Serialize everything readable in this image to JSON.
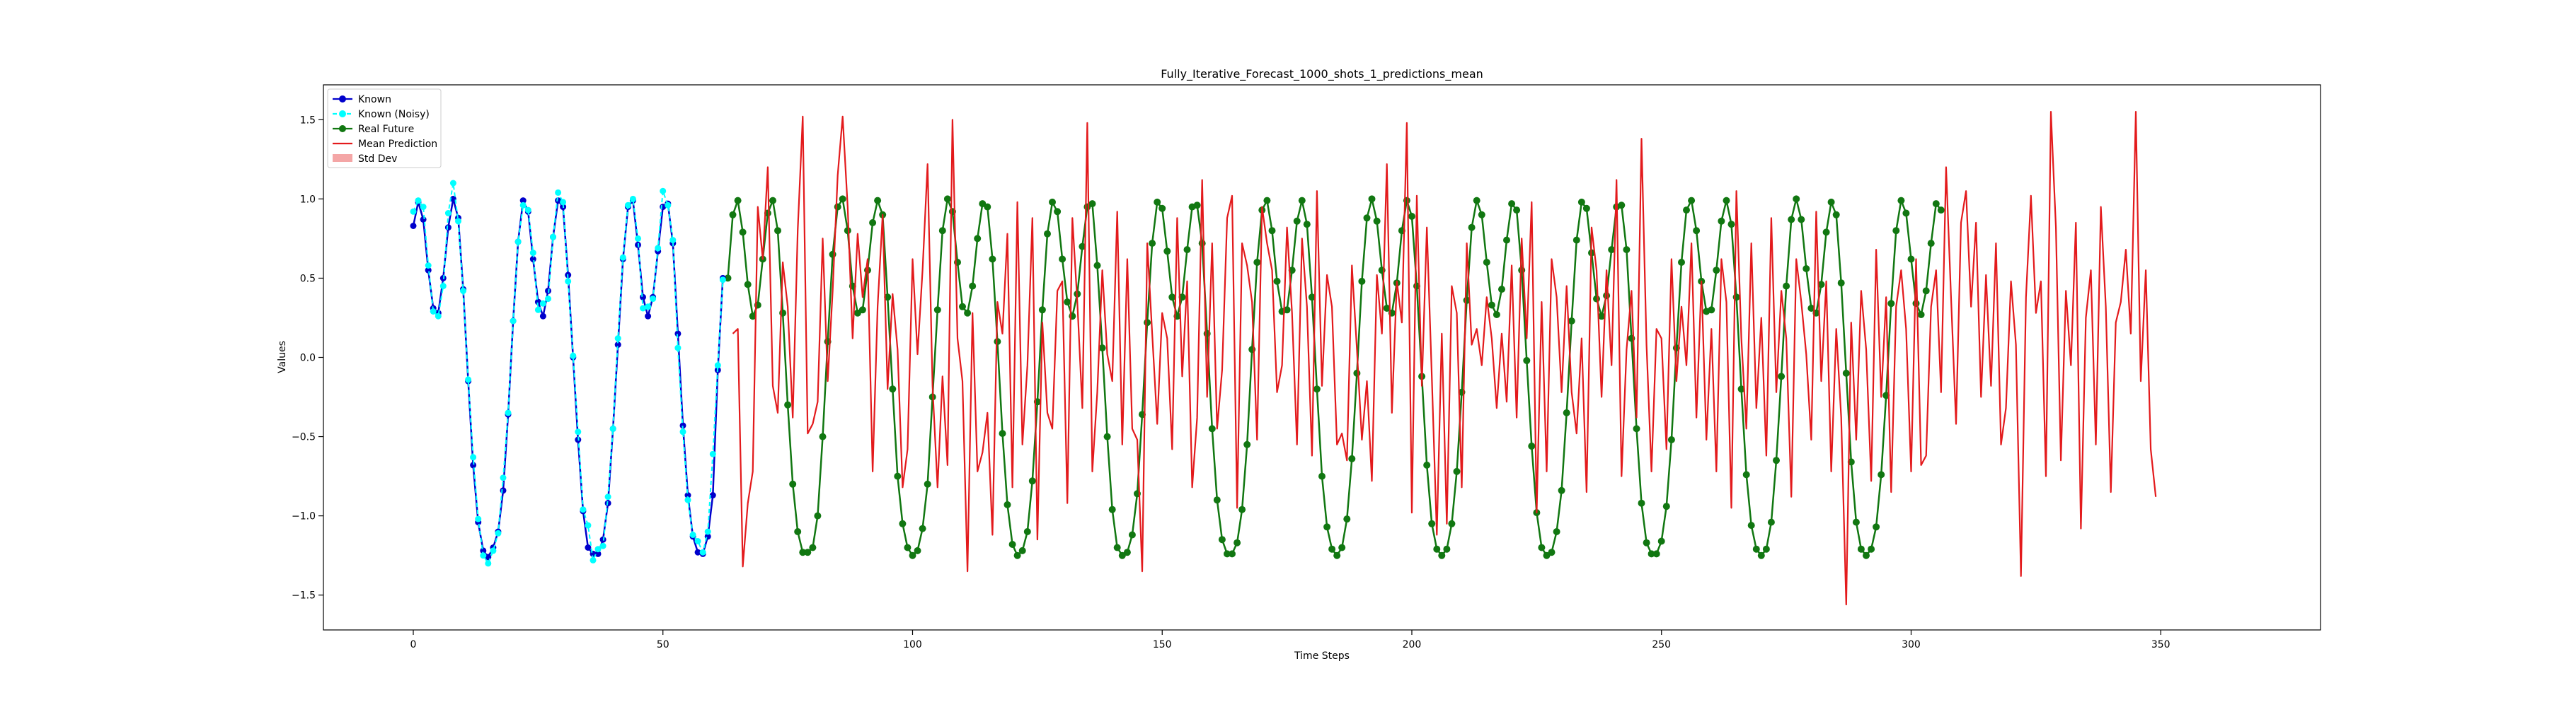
{
  "chart_data": {
    "type": "line",
    "title": "Fully_Iterative_Forecast_1000_shots_1_predictions_mean",
    "xlabel": "Time Steps",
    "ylabel": "Values",
    "xlim": [
      -18,
      382
    ],
    "ylim": [
      -1.72,
      1.72
    ],
    "xticks": [
      0,
      50,
      100,
      150,
      200,
      250,
      300,
      350
    ],
    "xtick_labels": [
      "0",
      "50",
      "100",
      "150",
      "200",
      "250",
      "300",
      "350"
    ],
    "yticks": [
      -1.5,
      -1.0,
      -0.5,
      0.0,
      0.5,
      1.0,
      1.5
    ],
    "ytick_labels": [
      "−1.5",
      "−1.0",
      "−0.5",
      "0.0",
      "0.5",
      "1.0",
      "1.5"
    ],
    "grid": false,
    "legend_position": "top-left",
    "series": [
      {
        "name": "Known",
        "color": "#0000cc",
        "marker": "circle",
        "x_start": 0,
        "values": [
          0.83,
          0.98,
          0.87,
          0.55,
          0.31,
          0.28,
          0.5,
          0.82,
          1.0,
          0.88,
          0.43,
          -0.15,
          -0.68,
          -1.04,
          -1.22,
          -1.26,
          -1.2,
          -1.1,
          -0.84,
          -0.36,
          0.23,
          0.73,
          0.99,
          0.92,
          0.62,
          0.35,
          0.26,
          0.42,
          0.76,
          0.99,
          0.95,
          0.52,
          0.0,
          -0.52,
          -0.97,
          -1.2,
          -1.24,
          -1.24,
          -1.15,
          -0.92,
          -0.45,
          0.08,
          0.62,
          0.95,
          0.99,
          0.71,
          0.38,
          0.26,
          0.38,
          0.67,
          0.95,
          0.97,
          0.72,
          0.15,
          -0.43,
          -0.87,
          -1.13,
          -1.23,
          -1.24,
          -1.13,
          -0.87,
          -0.08,
          0.5
        ]
      },
      {
        "name": "Known (Noisy)",
        "color": "#00ffff",
        "marker": "circle",
        "x_start": 0,
        "values": [
          0.92,
          0.99,
          0.95,
          0.58,
          0.29,
          0.26,
          0.45,
          0.91,
          1.1,
          0.86,
          0.42,
          -0.14,
          -0.63,
          -1.02,
          -1.25,
          -1.3,
          -1.22,
          -1.11,
          -0.76,
          -0.35,
          0.23,
          0.73,
          0.96,
          0.93,
          0.66,
          0.3,
          0.34,
          0.37,
          0.76,
          1.04,
          0.98,
          0.48,
          0.01,
          -0.47,
          -0.96,
          -1.06,
          -1.28,
          -1.21,
          -1.19,
          -0.88,
          -0.45,
          0.12,
          0.63,
          0.96,
          1.0,
          0.75,
          0.31,
          0.32,
          0.37,
          0.69,
          1.05,
          0.96,
          0.74,
          0.06,
          -0.47,
          -0.9,
          -1.12,
          -1.16,
          -1.23,
          -1.1,
          -0.61,
          -0.05,
          0.49
        ]
      },
      {
        "name": "Real Future",
        "color": "#117711",
        "marker": "circle",
        "x_start": 63,
        "values": [
          0.5,
          0.9,
          0.99,
          0.79,
          0.46,
          0.26,
          0.33,
          0.62,
          0.91,
          0.99,
          0.8,
          0.28,
          -0.3,
          -0.8,
          -1.1,
          -1.23,
          -1.23,
          -1.2,
          -1.0,
          -0.5,
          0.1,
          0.65,
          0.95,
          1.0,
          0.8,
          0.45,
          0.28,
          0.3,
          0.55,
          0.85,
          0.99,
          0.9,
          0.38,
          -0.2,
          -0.75,
          -1.05,
          -1.2,
          -1.25,
          -1.22,
          -1.08,
          -0.8,
          -0.25,
          0.3,
          0.8,
          1.0,
          0.92,
          0.6,
          0.32,
          0.28,
          0.45,
          0.75,
          0.97,
          0.95,
          0.62,
          0.1,
          -0.48,
          -0.93,
          -1.18,
          -1.25,
          -1.22,
          -1.1,
          -0.78,
          -0.28,
          0.3,
          0.78,
          0.98,
          0.92,
          0.62,
          0.35,
          0.26,
          0.4,
          0.7,
          0.95,
          0.97,
          0.58,
          0.06,
          -0.5,
          -0.96,
          -1.2,
          -1.25,
          -1.23,
          -1.12,
          -0.86,
          -0.36,
          0.22,
          0.72,
          0.98,
          0.94,
          0.67,
          0.38,
          0.26,
          0.38,
          0.68,
          0.95,
          0.96,
          0.72,
          0.15,
          -0.45,
          -0.9,
          -1.15,
          -1.24,
          -1.24,
          -1.17,
          -0.96,
          -0.55,
          0.05,
          0.6,
          0.93,
          0.99,
          0.8,
          0.48,
          0.29,
          0.3,
          0.55,
          0.86,
          0.99,
          0.84,
          0.38,
          -0.2,
          -0.75,
          -1.07,
          -1.21,
          -1.25,
          -1.2,
          -1.02,
          -0.64,
          -0.1,
          0.48,
          0.88,
          1.0,
          0.86,
          0.55,
          0.31,
          0.28,
          0.47,
          0.8,
          0.99,
          0.89,
          0.45,
          -0.12,
          -0.68,
          -1.05,
          -1.21,
          -1.25,
          -1.21,
          -1.05,
          -0.72,
          -0.22,
          0.36,
          0.82,
          0.99,
          0.9,
          0.6,
          0.33,
          0.27,
          0.43,
          0.74,
          0.97,
          0.93,
          0.55,
          -0.02,
          -0.56,
          -0.98,
          -1.2,
          -1.25,
          -1.23,
          -1.1,
          -0.84,
          -0.35,
          0.23,
          0.74,
          0.98,
          0.94,
          0.66,
          0.37,
          0.26,
          0.39,
          0.68,
          0.95,
          0.96,
          0.68,
          0.12,
          -0.45,
          -0.92,
          -1.17,
          -1.24,
          -1.24,
          -1.16,
          -0.94,
          -0.52,
          0.06,
          0.6,
          0.93,
          0.99,
          0.8,
          0.48,
          0.29,
          0.3,
          0.55,
          0.86,
          0.99,
          0.84,
          0.38,
          -0.2,
          -0.74,
          -1.06,
          -1.21,
          -1.25,
          -1.21,
          -1.04,
          -0.65,
          -0.12,
          0.45,
          0.87,
          1.0,
          0.87,
          0.56,
          0.31,
          0.28,
          0.46,
          0.79,
          0.98,
          0.9,
          0.47,
          -0.1,
          -0.66,
          -1.04,
          -1.21,
          -1.25,
          -1.21,
          -1.07,
          -0.74,
          -0.24,
          0.34,
          0.8,
          0.99,
          0.91,
          0.62,
          0.34,
          0.27,
          0.42,
          0.72,
          0.97,
          0.93
        ]
      },
      {
        "name": "Mean Prediction",
        "color": "#e31a1c",
        "marker": "none",
        "x_start": 64,
        "values": [
          0.15,
          0.18,
          -1.32,
          -0.92,
          -0.72,
          0.95,
          0.62,
          1.2,
          -0.18,
          -0.35,
          0.6,
          0.32,
          -0.38,
          0.8,
          1.52,
          -0.48,
          -0.42,
          -0.28,
          0.75,
          -0.15,
          0.42,
          1.15,
          1.52,
          0.95,
          0.12,
          0.78,
          0.38,
          0.62,
          -0.72,
          0.32,
          0.9,
          -0.2,
          0.4,
          0.05,
          -0.82,
          -0.58,
          0.62,
          0.02,
          0.55,
          1.22,
          -0.18,
          -0.82,
          -0.12,
          -0.68,
          1.5,
          0.12,
          -0.15,
          -1.35,
          0.28,
          -0.72,
          -0.6,
          -0.35,
          -1.12,
          0.35,
          0.15,
          0.78,
          -0.82,
          0.98,
          -0.55,
          -0.05,
          0.88,
          -1.15,
          0.22,
          -0.35,
          -0.45,
          0.42,
          0.48,
          -0.92,
          0.88,
          0.35,
          -0.32,
          1.48,
          -0.72,
          -0.22,
          0.55,
          0.02,
          -0.15,
          0.92,
          -0.55,
          0.62,
          -0.45,
          -0.52,
          -1.35,
          0.72,
          0.15,
          -0.42,
          0.28,
          0.12,
          -0.58,
          0.88,
          -0.12,
          0.48,
          -0.82,
          -0.38,
          1.12,
          -0.25,
          0.72,
          -0.45,
          -0.08,
          0.88,
          1.02,
          -0.95,
          0.72,
          0.58,
          0.35,
          -0.52,
          0.95,
          0.72,
          0.55,
          -0.22,
          -0.05,
          0.82,
          0.28,
          -0.55,
          0.75,
          0.32,
          -0.62,
          1.05,
          -0.18,
          0.52,
          0.32,
          -0.55,
          -0.48,
          -0.65,
          0.58,
          0.05,
          -0.52,
          -0.15,
          -0.78,
          0.52,
          0.15,
          1.22,
          -0.35,
          0.48,
          0.22,
          1.48,
          -0.98,
          1.02,
          -0.18,
          0.82,
          -0.12,
          -1.12,
          0.15,
          -1.05,
          0.45,
          0.28,
          -0.82,
          0.72,
          0.08,
          0.18,
          -0.05,
          0.38,
          0.12,
          -0.32,
          0.15,
          -0.28,
          0.58,
          -0.38,
          0.75,
          0.12,
          0.98,
          -0.98,
          0.35,
          -0.72,
          0.62,
          0.38,
          -0.22,
          0.45,
          -0.22,
          -0.48,
          0.12,
          -0.85,
          0.82,
          0.55,
          -0.25,
          0.55,
          -0.05,
          1.12,
          -0.75,
          0.05,
          0.42,
          -0.38,
          1.38,
          0.08,
          -0.72,
          0.18,
          0.12,
          -0.58,
          0.62,
          -0.15,
          0.32,
          -0.05,
          0.72,
          -0.38,
          0.48,
          -0.52,
          0.18,
          -0.72,
          0.62,
          0.35,
          -0.95,
          1.05,
          0.12,
          -0.45,
          0.72,
          -0.32,
          0.25,
          -0.62,
          0.88,
          -0.22,
          0.42,
          0.12,
          -0.88,
          0.62,
          0.35,
          0.02,
          -0.52,
          0.92,
          -0.15,
          0.48,
          -0.72,
          0.18,
          -0.38,
          -1.56,
          0.22,
          -0.52,
          0.42,
          0.05,
          -0.78,
          0.68,
          -0.25,
          0.38,
          -0.85,
          0.32,
          0.55,
          0.18,
          -0.72,
          0.62,
          -0.68,
          -0.62,
          0.32,
          0.55,
          -0.22,
          1.2,
          0.38,
          -0.42,
          0.85,
          1.05,
          0.32,
          0.85,
          -0.25,
          0.52,
          -0.18,
          0.72,
          -0.55,
          -0.32,
          0.48,
          0.08,
          -1.38,
          0.38,
          1.02,
          0.28,
          0.48,
          -0.75,
          1.55,
          0.82,
          -0.65,
          0.42,
          -0.05,
          0.85,
          -1.08,
          0.25,
          0.55,
          -0.55,
          0.95,
          0.32,
          -0.85,
          0.22,
          0.35,
          0.68,
          0.15,
          1.55,
          -0.15,
          0.55,
          -0.58,
          -0.88
        ]
      }
    ],
    "legend": [
      {
        "label": "Known",
        "symbol": "line-marker",
        "color": "#0000cc"
      },
      {
        "label": "Known (Noisy)",
        "symbol": "line-marker",
        "color": "#00ffff"
      },
      {
        "label": "Real Future",
        "symbol": "line-marker",
        "color": "#117711"
      },
      {
        "label": "Mean Prediction",
        "symbol": "line",
        "color": "#e31a1c"
      },
      {
        "label": "Std Dev",
        "symbol": "patch",
        "color": "#f4a6a6"
      }
    ]
  }
}
